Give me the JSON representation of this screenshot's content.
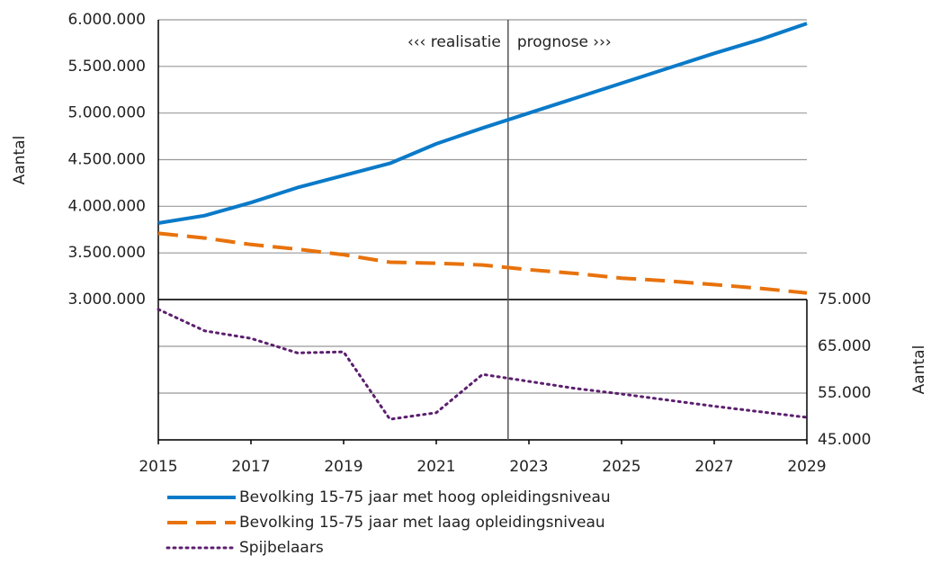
{
  "chart_data": {
    "type": "line",
    "x": [
      2015,
      2016,
      2017,
      2018,
      2019,
      2020,
      2021,
      2022,
      2023,
      2024,
      2025,
      2026,
      2027,
      2028,
      2029
    ],
    "xlim": [
      2015,
      2029
    ],
    "xticks": [
      2015,
      2017,
      2019,
      2021,
      2023,
      2025,
      2027,
      2029
    ],
    "ylim": [
      3000000,
      6000000
    ],
    "yticks": [
      {
        "value": 3000000,
        "label": "3.000.000"
      },
      {
        "value": 3500000,
        "label": "3.500.000"
      },
      {
        "value": 4000000,
        "label": "4.000.000"
      },
      {
        "value": 4500000,
        "label": "4.500.000"
      },
      {
        "value": 5000000,
        "label": "5.000.000"
      },
      {
        "value": 5500000,
        "label": "5.500.000"
      },
      {
        "value": 6000000,
        "label": "6.000.000"
      }
    ],
    "y2lim": [
      45000,
      75000
    ],
    "y2ticks": [
      {
        "value": 45000,
        "label": "45.000"
      },
      {
        "value": 55000,
        "label": "55.000"
      },
      {
        "value": 65000,
        "label": "65.000"
      },
      {
        "value": 75000,
        "label": "75.000"
      }
    ],
    "ylabel": "Aantal",
    "y2label": "Aantal",
    "grid": true,
    "divider_x": 2022.55,
    "annotations": [
      "‹‹‹ realisatie",
      "prognose ›››"
    ],
    "series": [
      {
        "name": "Bevolking 15-75 jaar met hoog opleidingsniveau",
        "color": "#0a7ac8",
        "style": "solid",
        "axis": "y",
        "values": [
          3820000,
          3900000,
          4040000,
          4200000,
          4330000,
          4460000,
          4670000,
          4840000,
          5000000,
          5160000,
          5320000,
          5480000,
          5640000,
          5790000,
          5960000
        ]
      },
      {
        "name": "Bevolking 15-75 jaar met laag opleidingsniveau",
        "color": "#e8720c",
        "style": "dashed",
        "axis": "y",
        "values": [
          3710000,
          3660000,
          3590000,
          3540000,
          3480000,
          3400000,
          3390000,
          3370000,
          3320000,
          3280000,
          3230000,
          3200000,
          3160000,
          3120000,
          3070000
        ]
      },
      {
        "name": "Spijbelaars",
        "color": "#5b1f6e",
        "style": "dotted",
        "axis": "y2",
        "values": [
          72900,
          68300,
          66700,
          63600,
          63800,
          49400,
          50800,
          59000,
          57500,
          56000,
          54800,
          53500,
          52200,
          51000,
          49800
        ]
      }
    ]
  }
}
